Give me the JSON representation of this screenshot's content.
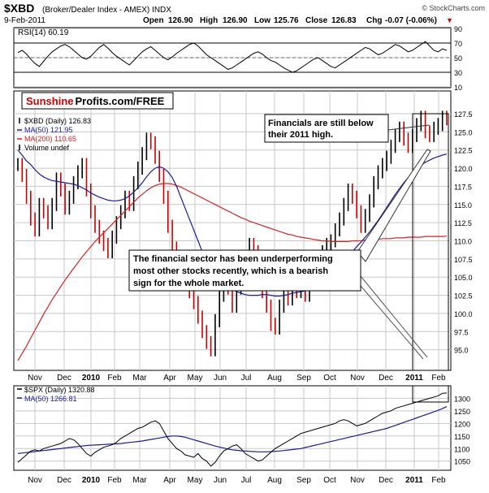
{
  "header": {
    "symbol": "$XBD",
    "description": "(Broker/Dealer Index - AMEX) INDX",
    "watermark": "© StockCharts.com",
    "date": "9-Feb-2011",
    "open_label": "Open",
    "open_value": "126.90",
    "high_label": "High",
    "high_value": "126.90",
    "low_label": "Low",
    "low_value": "125.76",
    "close_label": "Close",
    "close_value": "126.83",
    "chg_label": "Chg",
    "chg_value": "-0.07 (-0.06%)",
    "chg_arrow": "▼"
  },
  "logo": {
    "part1": "Sunshine",
    "part2": "Profits.com/FREE"
  },
  "annotations": {
    "top_line1": "Financials are still below",
    "top_line2": "their 2011 high.",
    "mid_line1": "The financial sector has been underperforming",
    "mid_line2": "most other stocks recently, which is a bearish",
    "mid_line3": "sign for the whole market."
  },
  "colors": {
    "price": "#000000",
    "down_bar": "#cc0000",
    "ma50": "#1a1aa0",
    "ma200": "#dd2222",
    "rsi_fill": "#3a8a3a",
    "grid": "#c8c8c8",
    "background": "#ffffff"
  },
  "chart_data": [
    {
      "type": "line",
      "panel": "rsi",
      "legend": "RSI(14) 60.19",
      "ylim": [
        10,
        90
      ],
      "y_ticks": [
        90,
        70,
        50,
        30,
        10
      ],
      "overbought": 70,
      "oversold": 30,
      "values": [
        57,
        60,
        55,
        48,
        42,
        38,
        45,
        52,
        58,
        62,
        66,
        68,
        65,
        60,
        55,
        50,
        48,
        52,
        58,
        64,
        68,
        63,
        57,
        52,
        48,
        44,
        40,
        46,
        52,
        58,
        62,
        65,
        60,
        55,
        50,
        47,
        51,
        56,
        60,
        64,
        68,
        70,
        66,
        60,
        54,
        50,
        46,
        42,
        38,
        34,
        36,
        40,
        44,
        48,
        52,
        56,
        58,
        55,
        50,
        46,
        44,
        40,
        36,
        33,
        30,
        32,
        36,
        40,
        44,
        48,
        50,
        46,
        42,
        38,
        36,
        40,
        44,
        48,
        52,
        56,
        60,
        64,
        62,
        58,
        54,
        56,
        60,
        64,
        68,
        66,
        62,
        58,
        60,
        64,
        68,
        72,
        66,
        60,
        58,
        62,
        60
      ]
    },
    {
      "type": "line",
      "panel": "price",
      "title": "$XBD (Broker/Dealer Index - AMEX) INDX",
      "ylim": [
        92.5,
        127.5
      ],
      "y_ticks": [
        127.5,
        125.0,
        122.5,
        120.0,
        117.5,
        115.0,
        112.5,
        110.0,
        107.5,
        105.0,
        102.5,
        100.0,
        97.5,
        95.0
      ],
      "x_labels": [
        "Nov",
        "Dec",
        "2010",
        "Feb",
        "Mar",
        "Apr",
        "May",
        "Jun",
        "Jul",
        "Aug",
        "Sep",
        "Oct",
        "Nov",
        "Dec",
        "2011",
        "Feb"
      ],
      "series": [
        {
          "name": "$XBD (Daily) 126.83",
          "values": [
            120.5,
            119.0,
            116.0,
            113.0,
            111.5,
            115.0,
            114.0,
            112.5,
            115.0,
            118.5,
            117.0,
            114.5,
            116.0,
            118.0,
            119.5,
            120.5,
            117.0,
            114.0,
            112.0,
            110.5,
            109.5,
            108.5,
            110.5,
            112.5,
            114.0,
            116.0,
            115.0,
            118.0,
            120.0,
            122.0,
            124.0,
            123.5,
            121.5,
            119.0,
            116.0,
            112.0,
            109.0,
            106.5,
            104.5,
            104.0,
            103.0,
            101.5,
            99.5,
            97.5,
            96.0,
            95.0,
            99.0,
            102.5,
            104.5,
            103.5,
            101.0,
            103.5,
            104.5,
            106.5,
            109.5,
            108.5,
            105.0,
            103.0,
            101.0,
            98.5,
            98.0,
            101.0,
            103.0,
            102.0,
            104.0,
            103.0,
            104.5,
            102.5,
            104.0,
            106.0,
            107.0,
            108.5,
            109.5,
            110.0,
            111.5,
            113.0,
            115.0,
            117.0,
            116.0,
            114.0,
            112.0,
            113.5,
            115.5,
            118.0,
            119.5,
            120.5,
            121.5,
            123.0,
            124.5,
            125.5,
            124.0,
            123.0,
            124.5,
            126.0,
            127.0,
            125.0,
            124.5,
            125.5,
            126.0,
            127.0,
            126.8
          ]
        },
        {
          "name": "MA(50) 121.95",
          "values": [
            122.5,
            121.8,
            121.0,
            120.5,
            119.8,
            119.2,
            118.8,
            118.5,
            118.3,
            118.2,
            118.1,
            118.0,
            117.9,
            117.8,
            117.6,
            117.3,
            117.0,
            116.6,
            116.3,
            116.0,
            115.8,
            115.6,
            115.5,
            115.5,
            115.6,
            115.8,
            116.2,
            116.7,
            117.3,
            118.0,
            118.8,
            119.5,
            120.0,
            120.2,
            120.0,
            119.5,
            118.7,
            117.5,
            116.0,
            114.5,
            113.0,
            111.5,
            110.0,
            108.5,
            107.0,
            106.0,
            105.2,
            104.5,
            104.0,
            103.6,
            103.3,
            103.0,
            102.8,
            102.6,
            102.5,
            102.5,
            102.5,
            102.6,
            102.6,
            102.5,
            102.4,
            102.4,
            102.5,
            102.6,
            102.8,
            102.9,
            103.0,
            103.1,
            103.2,
            103.3,
            103.5,
            103.8,
            104.2,
            104.8,
            105.5,
            106.2,
            107.0,
            107.8,
            108.5,
            109.2,
            109.8,
            110.5,
            111.2,
            112.0,
            112.8,
            113.7,
            114.6,
            115.5,
            116.4,
            117.2,
            118.0,
            118.7,
            119.3,
            119.9,
            120.4,
            120.8,
            121.1,
            121.4,
            121.6,
            121.8,
            121.95
          ]
        },
        {
          "name": "MA(200) 110.65",
          "values": [
            93.5,
            94.5,
            95.5,
            96.6,
            97.7,
            98.8,
            99.9,
            100.9,
            101.9,
            102.8,
            103.7,
            104.6,
            105.4,
            106.2,
            107.0,
            107.8,
            108.5,
            109.2,
            109.9,
            110.5,
            111.1,
            111.7,
            112.3,
            112.9,
            113.5,
            114.1,
            114.7,
            115.3,
            115.9,
            116.4,
            116.9,
            117.3,
            117.6,
            117.8,
            117.9,
            117.9,
            117.8,
            117.6,
            117.4,
            117.1,
            116.8,
            116.5,
            116.2,
            115.9,
            115.6,
            115.3,
            115.0,
            114.7,
            114.4,
            114.1,
            113.8,
            113.5,
            113.2,
            113.0,
            112.7,
            112.5,
            112.3,
            112.1,
            111.9,
            111.7,
            111.5,
            111.3,
            111.1,
            110.9,
            110.8,
            110.6,
            110.5,
            110.4,
            110.3,
            110.2,
            110.1,
            110.0,
            110.0,
            109.9,
            109.9,
            109.9,
            109.9,
            109.9,
            110.0,
            110.0,
            110.0,
            110.1,
            110.1,
            110.2,
            110.2,
            110.3,
            110.3,
            110.3,
            110.4,
            110.4,
            110.4,
            110.5,
            110.5,
            110.5,
            110.5,
            110.6,
            110.6,
            110.6,
            110.6,
            110.6,
            110.65
          ]
        }
      ],
      "extra_legend": [
        "Volume undef"
      ]
    },
    {
      "type": "line",
      "panel": "spx",
      "ylim": [
        1020,
        1340
      ],
      "y_ticks": [
        1300,
        1250,
        1200,
        1150,
        1100,
        1050
      ],
      "x_labels": [
        "Nov",
        "Dec",
        "2010",
        "Feb",
        "Mar",
        "Apr",
        "May",
        "Jun",
        "Jul",
        "Aug",
        "Sep",
        "Oct",
        "Nov",
        "Dec",
        "2011",
        "Feb"
      ],
      "series": [
        {
          "name": "$SPX (Daily) 1320.88",
          "values": [
            1045,
            1060,
            1075,
            1090,
            1095,
            1090,
            1100,
            1105,
            1110,
            1115,
            1120,
            1130,
            1140,
            1135,
            1120,
            1100,
            1080,
            1070,
            1085,
            1095,
            1105,
            1110,
            1115,
            1125,
            1140,
            1150,
            1160,
            1170,
            1180,
            1185,
            1195,
            1205,
            1210,
            1200,
            1170,
            1140,
            1120,
            1100,
            1090,
            1075,
            1070,
            1065,
            1080,
            1060,
            1050,
            1030,
            1045,
            1070,
            1090,
            1100,
            1110,
            1115,
            1100,
            1080,
            1070,
            1060,
            1050,
            1055,
            1070,
            1085,
            1100,
            1110,
            1120,
            1130,
            1140,
            1150,
            1160,
            1165,
            1170,
            1175,
            1180,
            1185,
            1190,
            1195,
            1200,
            1210,
            1215,
            1210,
            1200,
            1190,
            1195,
            1200,
            1210,
            1220,
            1230,
            1240,
            1245,
            1250,
            1260,
            1265,
            1270,
            1275,
            1280,
            1285,
            1290,
            1295,
            1300,
            1305,
            1310,
            1320,
            1320.88
          ]
        },
        {
          "name": "MA(50) 1266.81",
          "values": [
            1080,
            1082,
            1084,
            1086,
            1088,
            1090,
            1092,
            1094,
            1096,
            1098,
            1100,
            1102,
            1104,
            1106,
            1108,
            1110,
            1112,
            1113,
            1114,
            1115,
            1116,
            1117,
            1118,
            1119,
            1120,
            1122,
            1124,
            1126,
            1128,
            1130,
            1133,
            1136,
            1139,
            1142,
            1145,
            1148,
            1150,
            1150,
            1148,
            1145,
            1140,
            1135,
            1130,
            1125,
            1120,
            1115,
            1110,
            1106,
            1102,
            1098,
            1095,
            1093,
            1091,
            1090,
            1089,
            1088,
            1087,
            1087,
            1087,
            1088,
            1089,
            1090,
            1092,
            1094,
            1096,
            1098,
            1100,
            1104,
            1108,
            1112,
            1116,
            1120,
            1124,
            1128,
            1132,
            1136,
            1140,
            1144,
            1148,
            1152,
            1156,
            1160,
            1164,
            1168,
            1172,
            1176,
            1180,
            1186,
            1192,
            1198,
            1204,
            1210,
            1216,
            1222,
            1228,
            1234,
            1240,
            1246,
            1252,
            1259,
            1266.81
          ]
        }
      ]
    }
  ]
}
